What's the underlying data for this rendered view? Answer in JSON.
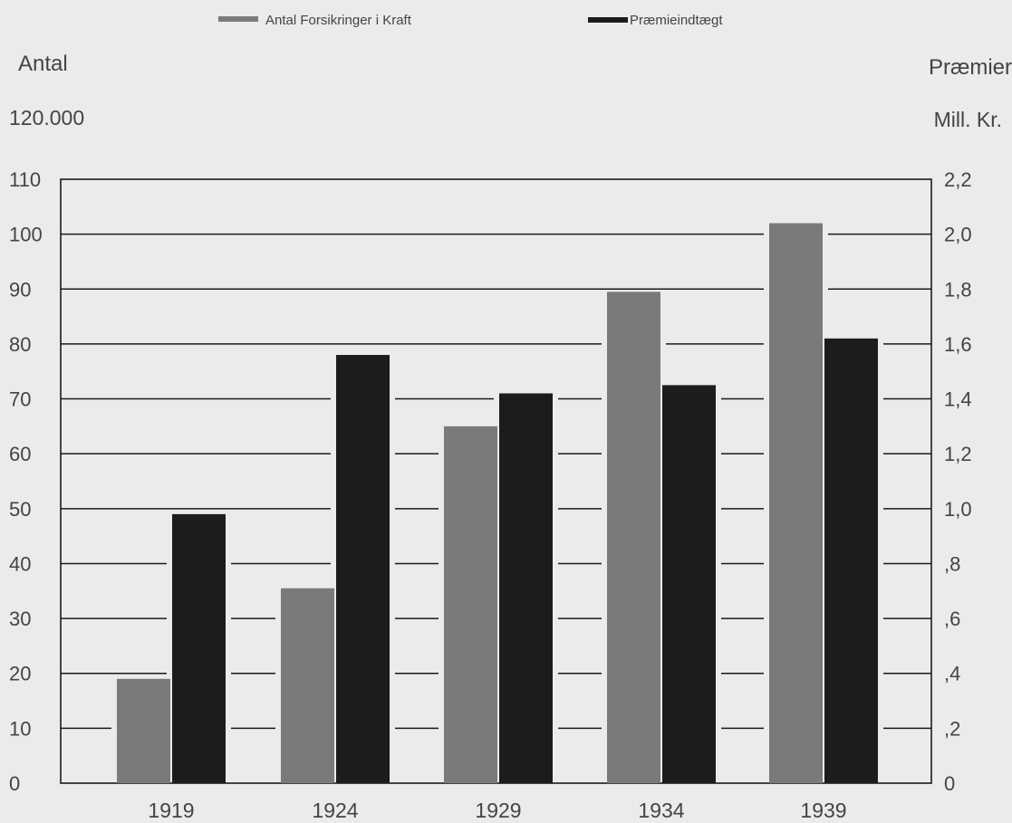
{
  "chart_data": {
    "type": "bar",
    "categories": [
      "1919",
      "1924",
      "1929",
      "1934",
      "1939"
    ],
    "series": [
      {
        "name": "Antal Forsikringer i Kraft",
        "axis": "left",
        "color": "#7a7a7a",
        "values": [
          19,
          35.5,
          65,
          89.5,
          102
        ]
      },
      {
        "name": "Præmieindtægt",
        "axis": "right",
        "color": "#1c1c1c",
        "values": [
          0.98,
          1.56,
          1.42,
          1.45,
          1.62
        ]
      }
    ],
    "left_axis": {
      "title": "Antal",
      "unit_label": "120.000",
      "ylim": [
        0,
        110
      ],
      "ticks": [
        "0",
        "10",
        "20",
        "30",
        "40",
        "50",
        "60",
        "70",
        "80",
        "90",
        "100",
        "110"
      ]
    },
    "right_axis": {
      "title": "Præmier",
      "unit_label": "Mill. Kr.",
      "ylim": [
        0,
        2.2
      ],
      "ticks": [
        "0",
        ",2",
        ",4",
        ",6",
        ",8",
        "1,0",
        "1,2",
        "1,4",
        "1,6",
        "1,8",
        "2,0",
        "2,2"
      ]
    },
    "legend_position": "top-center",
    "grid": true
  },
  "colors": {
    "background": "#ebebea",
    "axis": "#1a1a1a",
    "grid": "#1a1a1a",
    "text": "#444444"
  }
}
